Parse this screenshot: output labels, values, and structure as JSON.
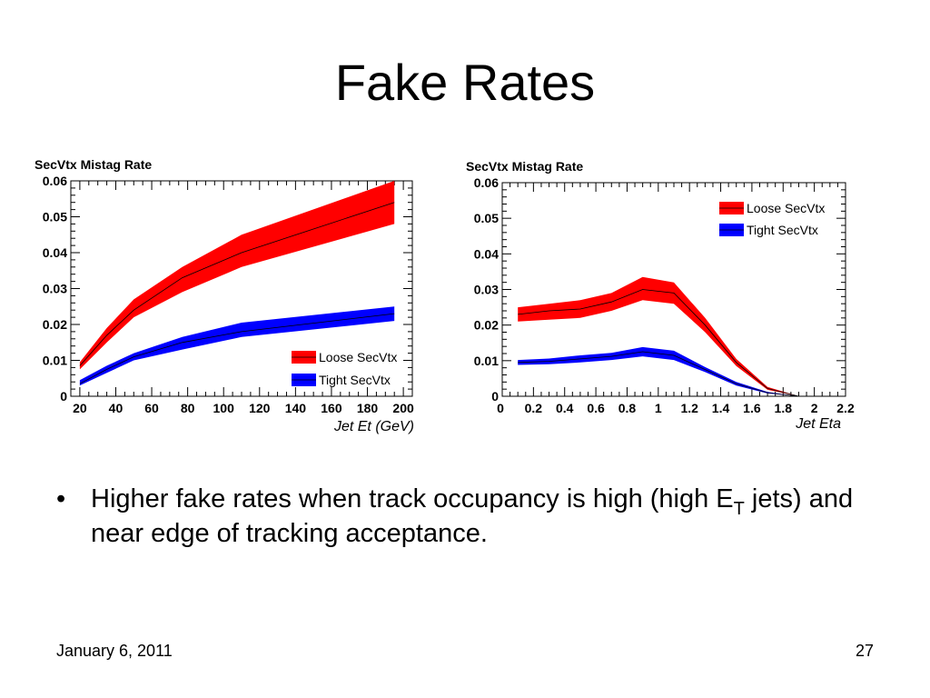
{
  "slide": {
    "title": "Fake Rates",
    "bullet_symbol": "•",
    "bullet_text_main": "Higher fake rates when track occupancy is high (high E",
    "bullet_text_sub": "T",
    "bullet_text_rest": " jets) and near edge of tracking acceptance.",
    "footer_date": "January 6, 2011",
    "footer_page": "27"
  },
  "colors": {
    "loose": "#ff0000",
    "tight": "#0000ff",
    "central_line": "#000000"
  },
  "chart_data": [
    {
      "type": "area",
      "title": "",
      "ylabel": "SecVtx Mistag Rate",
      "xlabel": "Jet Et (GeV)",
      "xlim": [
        15,
        205
      ],
      "ylim": [
        0,
        0.06
      ],
      "xticks": [
        20,
        40,
        60,
        80,
        100,
        120,
        140,
        160,
        180,
        200
      ],
      "yticks": [
        "0",
        "0.01",
        "0.02",
        "0.03",
        "0.04",
        "0.05",
        "0.06"
      ],
      "legend_position": "bottom-right",
      "series": [
        {
          "name": "Loose SecVtx",
          "color": "#ff0000",
          "x": [
            20,
            35,
            50,
            77,
            110,
            195
          ],
          "y": [
            0.0085,
            0.017,
            0.024,
            0.033,
            0.04,
            0.054
          ],
          "y_low": [
            0.0075,
            0.015,
            0.022,
            0.029,
            0.036,
            0.048
          ],
          "y_high": [
            0.0095,
            0.019,
            0.027,
            0.036,
            0.045,
            0.06
          ]
        },
        {
          "name": "Tight SecVtx",
          "color": "#0000ff",
          "x": [
            20,
            35,
            50,
            77,
            110,
            195
          ],
          "y": [
            0.0035,
            0.0075,
            0.011,
            0.015,
            0.018,
            0.023
          ],
          "y_low": [
            0.003,
            0.0065,
            0.01,
            0.013,
            0.0165,
            0.021
          ],
          "y_high": [
            0.0045,
            0.0085,
            0.012,
            0.0165,
            0.0205,
            0.025
          ]
        }
      ]
    },
    {
      "type": "area",
      "title": "",
      "ylabel": "SecVtx Mistag Rate",
      "xlabel": "Jet Eta",
      "xlim": [
        0,
        2.2
      ],
      "ylim": [
        0,
        0.06
      ],
      "xticks": [
        "0",
        "0.2",
        "0.4",
        "0.6",
        "0.8",
        "1",
        "1.2",
        "1.4",
        "1.6",
        "1.8",
        "2",
        "2.2"
      ],
      "yticks": [
        "0",
        "0.01",
        "0.02",
        "0.03",
        "0.04",
        "0.05",
        "0.06"
      ],
      "legend_position": "top-right",
      "series": [
        {
          "name": "Loose SecVtx",
          "color": "#ff0000",
          "x": [
            0.1,
            0.3,
            0.5,
            0.7,
            0.9,
            1.1,
            1.3,
            1.5,
            1.7,
            1.9
          ],
          "y": [
            0.023,
            0.024,
            0.0245,
            0.0265,
            0.03,
            0.029,
            0.02,
            0.0095,
            0.0022,
            0.0
          ],
          "y_low": [
            0.021,
            0.0215,
            0.022,
            0.024,
            0.027,
            0.026,
            0.018,
            0.0085,
            0.0018,
            0.0
          ],
          "y_high": [
            0.025,
            0.026,
            0.027,
            0.029,
            0.0335,
            0.032,
            0.022,
            0.0105,
            0.0026,
            0.0
          ]
        },
        {
          "name": "Tight SecVtx",
          "color": "#0000ff",
          "x": [
            0.1,
            0.3,
            0.5,
            0.7,
            0.9,
            1.1,
            1.3,
            1.5,
            1.7,
            1.9
          ],
          "y": [
            0.0095,
            0.0098,
            0.0105,
            0.0112,
            0.0125,
            0.0115,
            0.0075,
            0.0035,
            0.001,
            0.0
          ],
          "y_low": [
            0.0088,
            0.009,
            0.0095,
            0.0102,
            0.0112,
            0.0102,
            0.0068,
            0.003,
            0.0008,
            0.0
          ],
          "y_high": [
            0.0102,
            0.0106,
            0.0115,
            0.0122,
            0.0138,
            0.0128,
            0.0082,
            0.004,
            0.0012,
            0.0
          ]
        }
      ]
    }
  ]
}
